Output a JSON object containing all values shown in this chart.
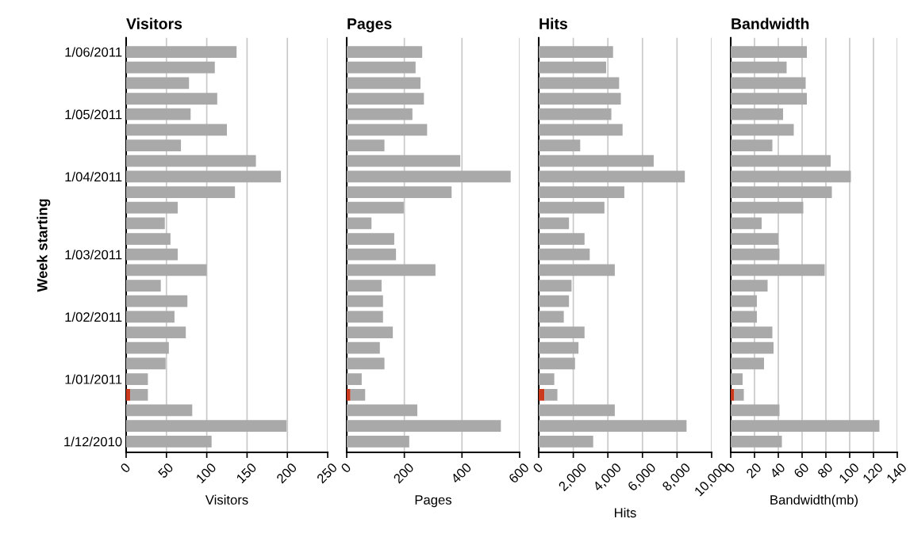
{
  "chart_data": [
    {
      "type": "bar",
      "orientation": "horizontal",
      "stacked": true,
      "title": "Visitors",
      "xlabel": "Visitors",
      "ylabel": "Week starting",
      "categories": [
        "1/06/2011",
        null,
        null,
        null,
        "1/05/2011",
        null,
        null,
        null,
        "1/04/2011",
        null,
        null,
        null,
        null,
        "1/03/2011",
        null,
        null,
        null,
        "1/02/2011",
        null,
        null,
        null,
        "1/01/2011",
        null,
        null,
        null,
        "1/12/2010"
      ],
      "series": [
        {
          "color": "#cc3a1e",
          "values": [
            null,
            null,
            null,
            null,
            null,
            null,
            null,
            null,
            null,
            null,
            null,
            null,
            null,
            null,
            null,
            null,
            null,
            null,
            null,
            null,
            null,
            null,
            5,
            null,
            null,
            null
          ]
        },
        {
          "color": "#a9a9a9",
          "values": [
            137,
            110,
            78,
            113,
            80,
            125,
            68,
            161,
            192,
            135,
            64,
            48,
            55,
            64,
            100,
            43,
            76,
            60,
            74,
            53,
            49,
            27,
            22,
            82,
            199,
            106
          ]
        }
      ],
      "xlim": [
        0,
        250
      ],
      "xticks": [
        0,
        50,
        100,
        150,
        200,
        250
      ],
      "grid": "x"
    },
    {
      "type": "bar",
      "orientation": "horizontal",
      "stacked": true,
      "title": "Pages",
      "xlabel": "Pages",
      "tick_labels": "x",
      "categories": [
        null,
        null,
        null,
        null,
        null,
        null,
        null,
        null,
        null,
        null,
        null,
        null,
        null,
        null,
        null,
        null,
        null,
        null,
        null,
        null,
        null,
        null,
        null,
        null,
        null,
        null
      ],
      "series": [
        {
          "color": "#cc3a1e",
          "values": [
            null,
            null,
            null,
            null,
            null,
            null,
            null,
            null,
            null,
            null,
            null,
            null,
            null,
            null,
            null,
            null,
            null,
            null,
            null,
            null,
            null,
            null,
            13,
            null,
            null,
            null
          ]
        },
        {
          "color": "#a9a9a9",
          "values": [
            262,
            239,
            256,
            268,
            228,
            279,
            131,
            394,
            569,
            364,
            198,
            86,
            165,
            171,
            308,
            121,
            126,
            126,
            160,
            115,
            131,
            52,
            51,
            245,
            535,
            217
          ]
        }
      ],
      "xlim": [
        0,
        600
      ],
      "xticks": [
        0,
        200,
        400,
        600
      ],
      "grid": "x"
    },
    {
      "type": "bar",
      "orientation": "horizontal",
      "stacked": true,
      "title": "Hits",
      "xlabel": "Hits",
      "tick_labels": "x",
      "categories": [
        null,
        null,
        null,
        null,
        null,
        null,
        null,
        null,
        null,
        null,
        null,
        null,
        null,
        null,
        null,
        null,
        null,
        null,
        null,
        null,
        null,
        null,
        null,
        null,
        null,
        null
      ],
      "series": [
        {
          "color": "#cc3a1e",
          "values": [
            null,
            null,
            null,
            null,
            null,
            null,
            null,
            null,
            null,
            null,
            null,
            null,
            null,
            null,
            null,
            null,
            null,
            null,
            null,
            null,
            null,
            null,
            330,
            null,
            null,
            null
          ]
        },
        {
          "color": "#a9a9a9",
          "values": [
            4300,
            3900,
            4650,
            4750,
            4200,
            4850,
            2400,
            6650,
            8450,
            4950,
            3800,
            1750,
            2650,
            2950,
            4400,
            1900,
            1750,
            1450,
            2650,
            2300,
            2100,
            900,
            750,
            4400,
            8550,
            3150
          ]
        }
      ],
      "xlim": [
        0,
        10000
      ],
      "xticks": [
        0,
        {
          "value": 2000,
          "label": "2,000"
        },
        {
          "value": 4000,
          "label": "4,000"
        },
        {
          "value": 6000,
          "label": "6,000"
        },
        {
          "value": 8000,
          "label": "8,000"
        },
        {
          "value": 10000,
          "label": "10,000"
        }
      ],
      "grid": "x"
    },
    {
      "type": "bar",
      "orientation": "horizontal",
      "stacked": true,
      "title": "Bandwidth",
      "xlabel": "Bandwidth(mb)",
      "tick_labels": "x",
      "categories": [
        null,
        null,
        null,
        null,
        null,
        null,
        null,
        null,
        null,
        null,
        null,
        null,
        null,
        null,
        null,
        null,
        null,
        null,
        null,
        null,
        null,
        null,
        null,
        null,
        null,
        null
      ],
      "series": [
        {
          "color": "#cc3a1e",
          "values": [
            null,
            null,
            null,
            null,
            null,
            null,
            null,
            null,
            null,
            null,
            null,
            null,
            null,
            null,
            null,
            null,
            null,
            null,
            null,
            null,
            null,
            null,
            3,
            null,
            null,
            null
          ]
        },
        {
          "color": "#a9a9a9",
          "values": [
            64,
            47,
            63,
            64,
            44,
            53,
            35,
            84,
            101,
            85,
            61,
            26,
            40,
            41,
            79,
            31,
            22,
            22,
            35,
            36,
            28,
            10,
            8,
            41,
            125,
            43
          ]
        }
      ],
      "xlim": [
        0,
        140
      ],
      "xticks": [
        0,
        20,
        40,
        60,
        80,
        100,
        120,
        140
      ],
      "grid": "x"
    }
  ]
}
